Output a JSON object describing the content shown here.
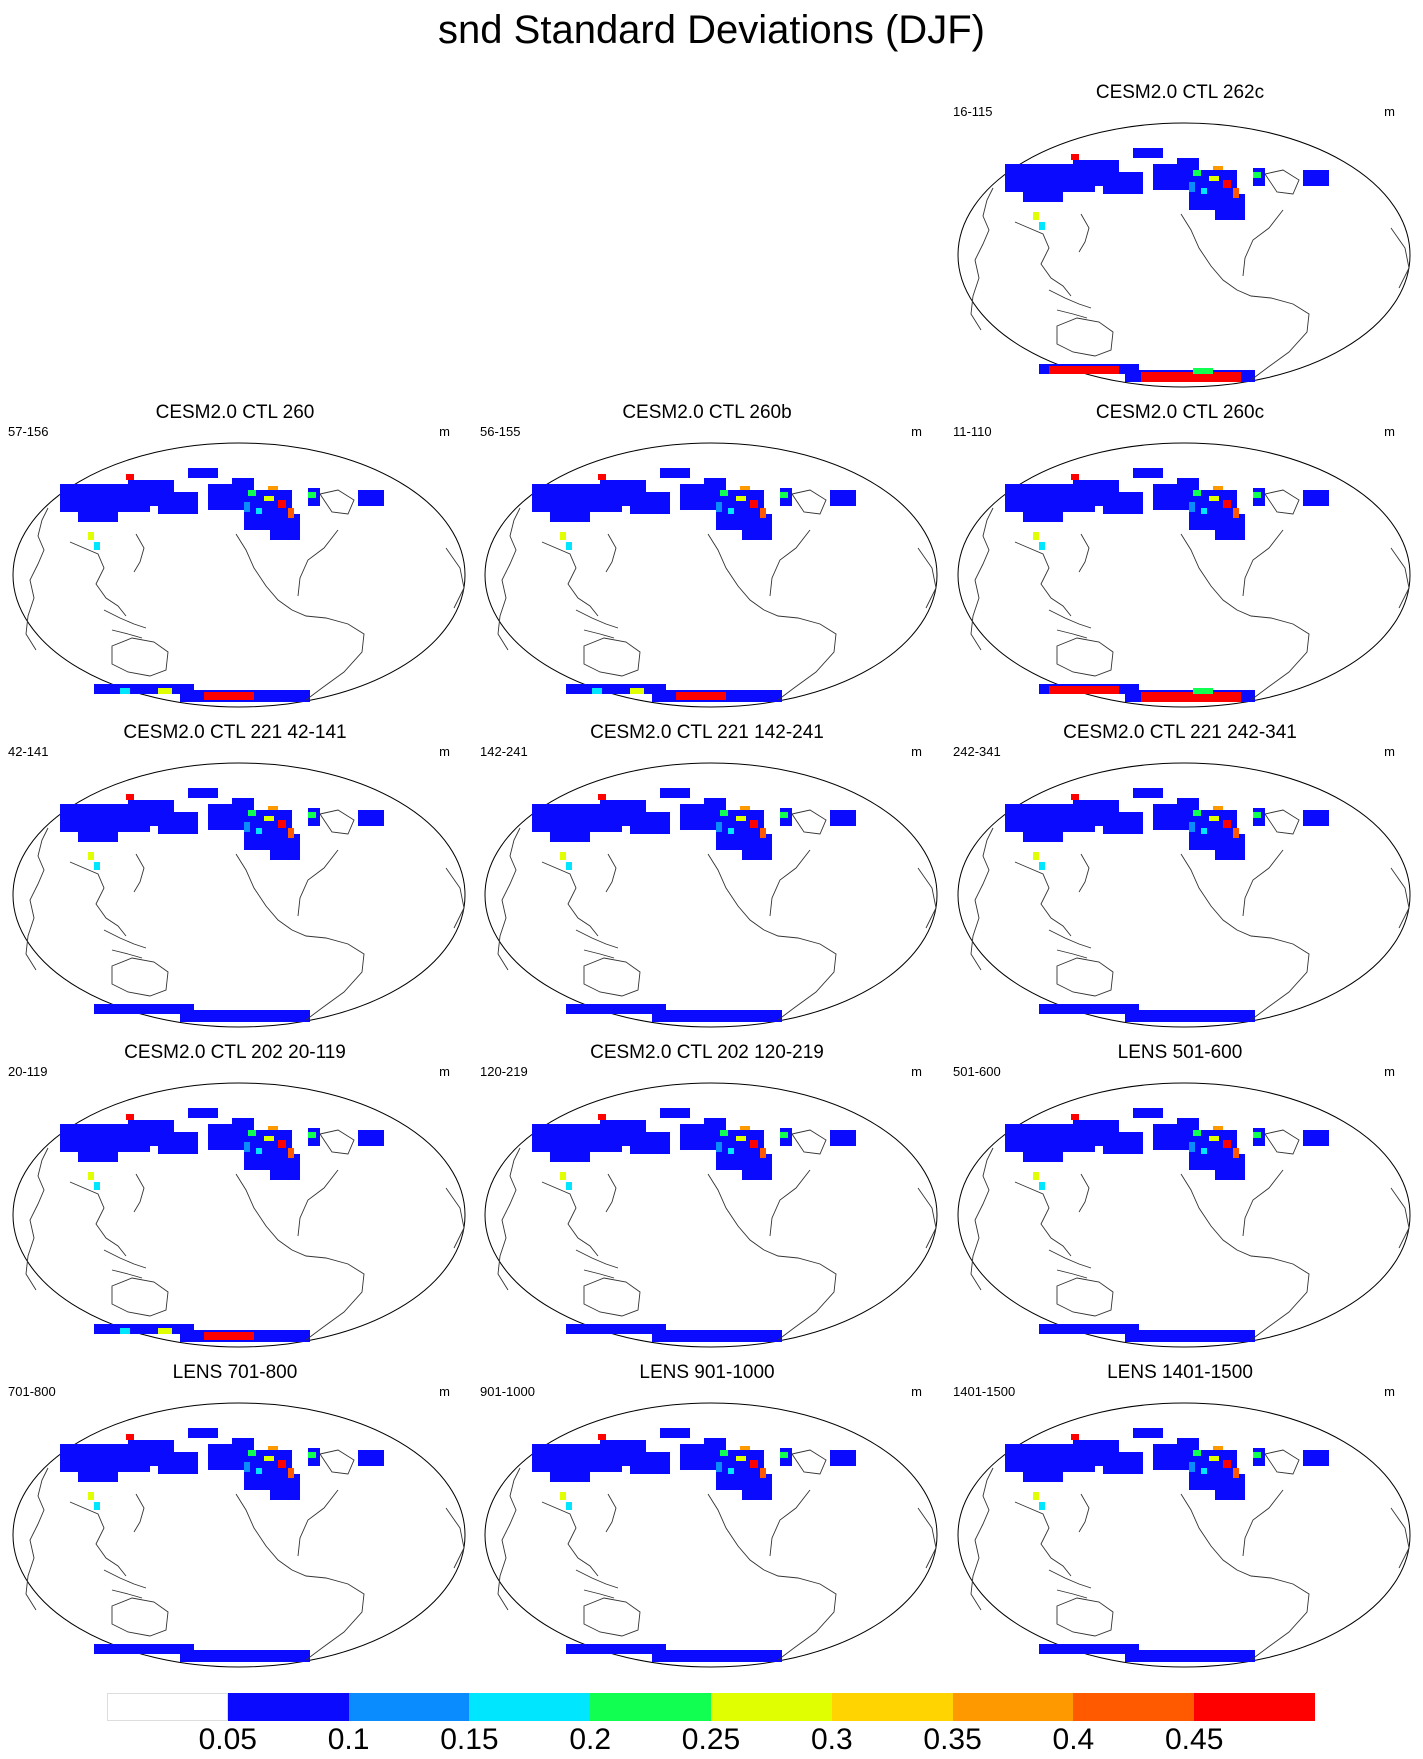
{
  "title": "snd Standard Deviations (DJF)",
  "unit": "m",
  "panels": [
    {
      "title": "CESM2.0 CTL 262c",
      "range": "16-115",
      "antarctic": "red"
    },
    {
      "title": "CESM2.0 CTL 260",
      "range": "57-156",
      "antarctic": "mixed"
    },
    {
      "title": "CESM2.0 CTL 260b",
      "range": "56-155",
      "antarctic": "mixed"
    },
    {
      "title": "CESM2.0 CTL 260c",
      "range": "11-110",
      "antarctic": "red"
    },
    {
      "title": "CESM2.0 CTL 221 42-141",
      "range": "42-141",
      "antarctic": "blue"
    },
    {
      "title": "CESM2.0 CTL 221 142-241",
      "range": "142-241",
      "antarctic": "blue"
    },
    {
      "title": "CESM2.0 CTL 221 242-341",
      "range": "242-341",
      "antarctic": "blue"
    },
    {
      "title": "CESM2.0 CTL 202 20-119",
      "range": "20-119",
      "antarctic": "mixed"
    },
    {
      "title": "CESM2.0 CTL 202 120-219",
      "range": "120-219",
      "antarctic": "blue"
    },
    {
      "title": "LENS 501-600",
      "range": "501-600",
      "antarctic": "blue"
    },
    {
      "title": "LENS 701-800",
      "range": "701-800",
      "antarctic": "blue"
    },
    {
      "title": "LENS 901-1000",
      "range": "901-1000",
      "antarctic": "blue"
    },
    {
      "title": "LENS 1401-1500",
      "range": "1401-1500",
      "antarctic": "blue"
    }
  ],
  "colorbar": {
    "colors": [
      "#ffffff",
      "#0a0aff",
      "#0a8cff",
      "#00e6ff",
      "#10ff50",
      "#e0ff00",
      "#ffd400",
      "#ff9900",
      "#ff5a00",
      "#ff0000"
    ],
    "labels": [
      "0.05",
      "0.1",
      "0.15",
      "0.2",
      "0.25",
      "0.3",
      "0.35",
      "0.4",
      "0.45"
    ]
  }
}
